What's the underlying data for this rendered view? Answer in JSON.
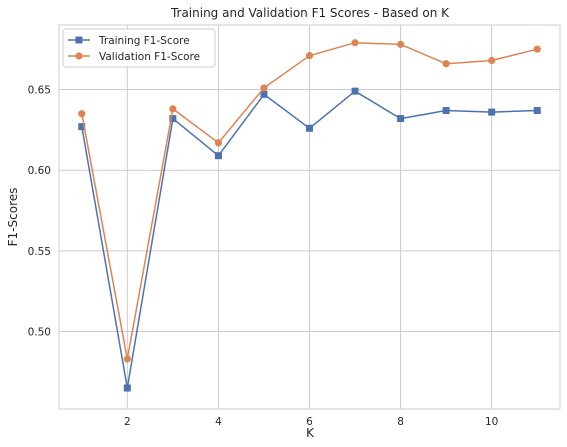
{
  "chart_data": {
    "type": "line",
    "title": "Training and Validation F1 Scores - Based on K",
    "xlabel": "K",
    "ylabel": "F1-Scores",
    "x": [
      1,
      2,
      3,
      4,
      5,
      6,
      7,
      8,
      9,
      10,
      11
    ],
    "xlim": [
      0.5,
      11.5
    ],
    "ylim": [
      0.452,
      0.69
    ],
    "xticks": [
      2,
      4,
      6,
      8,
      10
    ],
    "yticks": [
      0.5,
      0.55,
      0.6,
      0.65
    ],
    "xtick_labels": [
      "2",
      "4",
      "6",
      "8",
      "10"
    ],
    "ytick_labels": [
      "0.50",
      "0.55",
      "0.60",
      "0.65"
    ],
    "grid": true,
    "legend_position": "top-left",
    "series": [
      {
        "name": "Training F1-Score",
        "color": "#4c72b0",
        "marker": "square",
        "values": [
          0.627,
          0.465,
          0.632,
          0.609,
          0.647,
          0.626,
          0.649,
          0.632,
          0.637,
          0.636,
          0.637
        ]
      },
      {
        "name": "Validation F1-Score",
        "color": "#dd8452",
        "marker": "circle",
        "values": [
          0.635,
          0.483,
          0.638,
          0.617,
          0.651,
          0.671,
          0.679,
          0.678,
          0.666,
          0.668,
          0.675
        ]
      }
    ]
  }
}
